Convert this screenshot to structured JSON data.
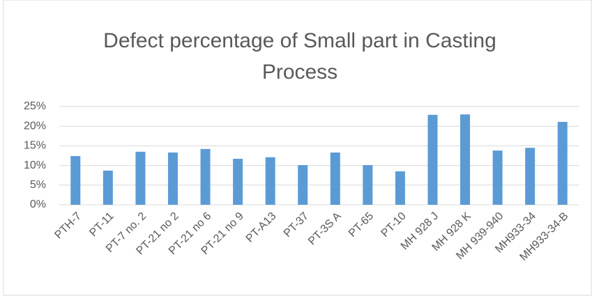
{
  "chart_data": {
    "type": "bar",
    "title": "Defect percentage of Small part in Casting Process",
    "categories": [
      "PTH-7",
      "PT-11",
      "PT-7 no. 2",
      "PT-21 no 2",
      "PT-21 no 6",
      "PT-21 no 9",
      "PT-A13",
      "PT-37",
      "PT-3S A",
      "PT-65",
      "PT-10",
      "MH 928 J",
      "MH 928 K",
      "MH 939-940",
      "MH933-34",
      "MH933-34-B"
    ],
    "values": [
      12.4,
      8.7,
      13.5,
      13.3,
      14.2,
      11.7,
      12.1,
      10.1,
      13.3,
      10.1,
      8.5,
      22.9,
      23.0,
      13.8,
      14.5,
      21.1
    ],
    "color": "#5b9bd5",
    "ylim": [
      0,
      25
    ],
    "yticks": [
      {
        "value": 0,
        "label": "0%"
      },
      {
        "value": 5,
        "label": "5%"
      },
      {
        "value": 10,
        "label": "10%"
      },
      {
        "value": 15,
        "label": "15%"
      },
      {
        "value": 20,
        "label": "20%"
      },
      {
        "value": 25,
        "label": "25%"
      }
    ],
    "grid": true
  }
}
